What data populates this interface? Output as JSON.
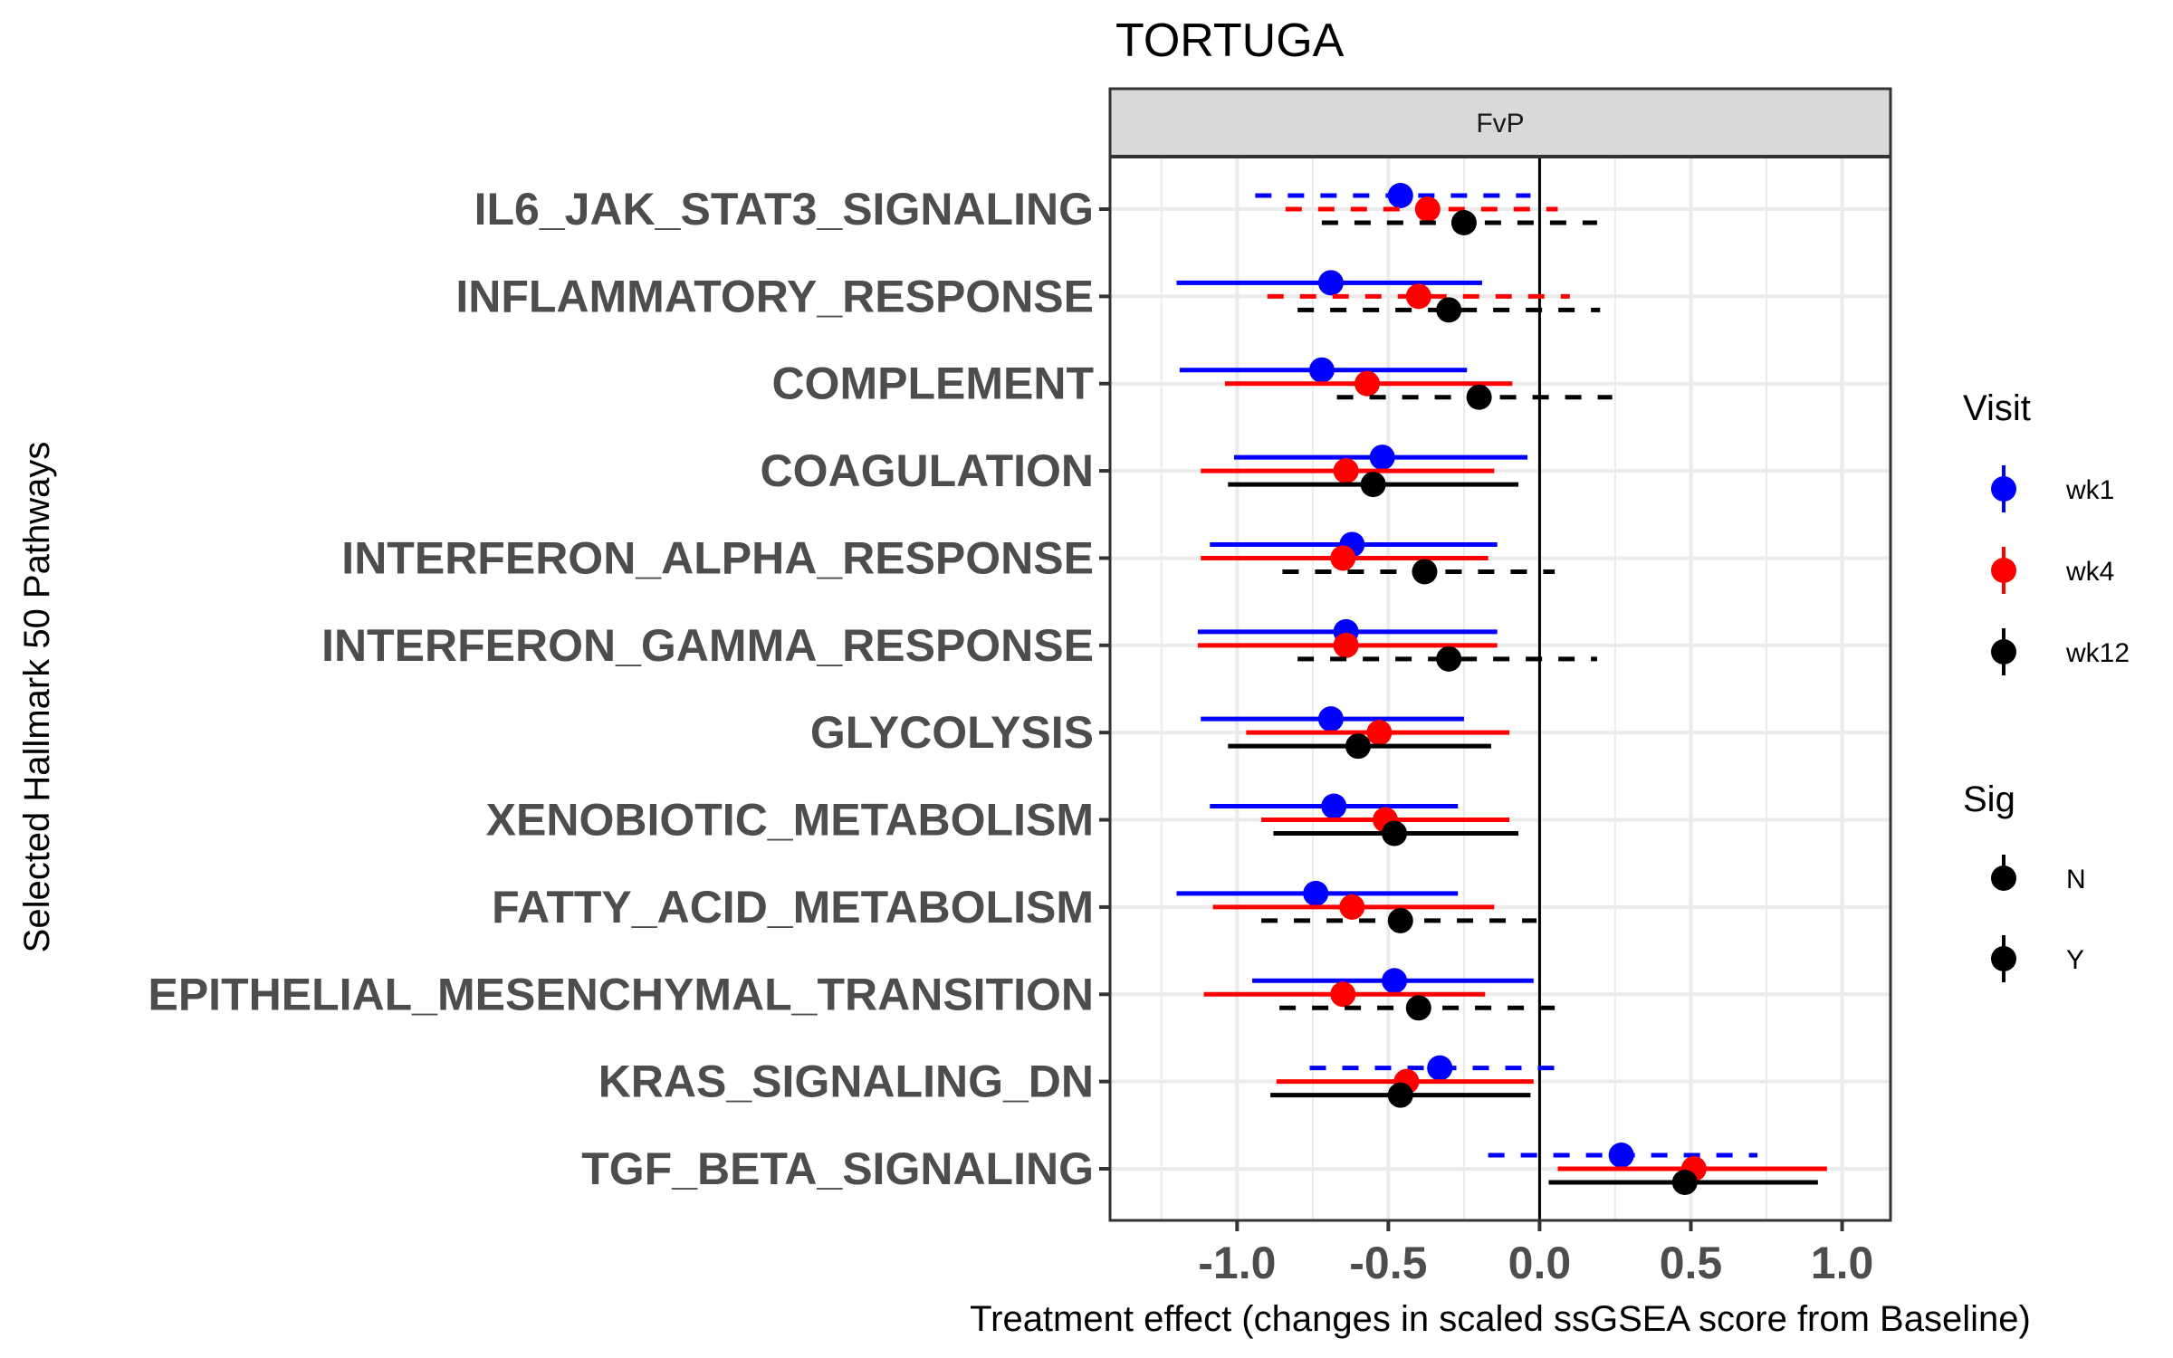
{
  "chart_data": {
    "type": "forest",
    "title": "TORTUGA",
    "facet_label": "FvP",
    "xlabel": "Treatment effect (changes in scaled ssGSEA score from Baseline)",
    "ylabel": "Selected Hallmark 50 Pathways",
    "xlim": [
      -1.42,
      1.16
    ],
    "x_ticks": [
      -1.0,
      -0.5,
      0.0,
      0.5,
      1.0
    ],
    "x_tick_labels": [
      "-1.0",
      "-0.5",
      "0.0",
      "0.5",
      "1.0"
    ],
    "x_minor_gridlines": [
      -1.25,
      -0.75,
      -0.25,
      0.25,
      0.75
    ],
    "reference_line": 0.0,
    "grid": true,
    "legend_position": "right",
    "colors": {
      "wk1": "#0000FF",
      "wk4": "#FF0000",
      "wk12": "#000000"
    },
    "legends": [
      {
        "title": "Visit",
        "entries": [
          {
            "label": "wk1",
            "color": "#0000FF",
            "linetype": "solid"
          },
          {
            "label": "wk4",
            "color": "#FF0000",
            "linetype": "solid"
          },
          {
            "label": "wk12",
            "color": "#000000",
            "linetype": "solid"
          }
        ]
      },
      {
        "title": "Sig",
        "entries": [
          {
            "label": "N",
            "color": "#000000",
            "linetype": "dashed"
          },
          {
            "label": "Y",
            "color": "#000000",
            "linetype": "solid"
          }
        ]
      }
    ],
    "visits": [
      "wk1",
      "wk4",
      "wk12"
    ],
    "pathways": [
      {
        "name": "IL6_JAK_STAT3_SIGNALING",
        "estimates": [
          {
            "visit": "wk1",
            "estimate": -0.46,
            "lower": -0.94,
            "upper": -0.03,
            "sig": "N"
          },
          {
            "visit": "wk4",
            "estimate": -0.37,
            "lower": -0.84,
            "upper": 0.06,
            "sig": "N"
          },
          {
            "visit": "wk12",
            "estimate": -0.25,
            "lower": -0.72,
            "upper": 0.19,
            "sig": "N"
          }
        ]
      },
      {
        "name": "INFLAMMATORY_RESPONSE",
        "estimates": [
          {
            "visit": "wk1",
            "estimate": -0.69,
            "lower": -1.2,
            "upper": -0.19,
            "sig": "Y"
          },
          {
            "visit": "wk4",
            "estimate": -0.4,
            "lower": -0.9,
            "upper": 0.1,
            "sig": "N"
          },
          {
            "visit": "wk12",
            "estimate": -0.3,
            "lower": -0.8,
            "upper": 0.2,
            "sig": "N"
          }
        ]
      },
      {
        "name": "COMPLEMENT",
        "estimates": [
          {
            "visit": "wk1",
            "estimate": -0.72,
            "lower": -1.19,
            "upper": -0.24,
            "sig": "Y"
          },
          {
            "visit": "wk4",
            "estimate": -0.57,
            "lower": -1.04,
            "upper": -0.09,
            "sig": "Y"
          },
          {
            "visit": "wk12",
            "estimate": -0.2,
            "lower": -0.67,
            "upper": 0.24,
            "sig": "N"
          }
        ]
      },
      {
        "name": "COAGULATION",
        "estimates": [
          {
            "visit": "wk1",
            "estimate": -0.52,
            "lower": -1.01,
            "upper": -0.04,
            "sig": "Y"
          },
          {
            "visit": "wk4",
            "estimate": -0.64,
            "lower": -1.12,
            "upper": -0.15,
            "sig": "Y"
          },
          {
            "visit": "wk12",
            "estimate": -0.55,
            "lower": -1.03,
            "upper": -0.07,
            "sig": "Y"
          }
        ]
      },
      {
        "name": "INTERFERON_ALPHA_RESPONSE",
        "estimates": [
          {
            "visit": "wk1",
            "estimate": -0.62,
            "lower": -1.09,
            "upper": -0.14,
            "sig": "Y"
          },
          {
            "visit": "wk4",
            "estimate": -0.65,
            "lower": -1.12,
            "upper": -0.17,
            "sig": "Y"
          },
          {
            "visit": "wk12",
            "estimate": -0.38,
            "lower": -0.85,
            "upper": 0.05,
            "sig": "N"
          }
        ]
      },
      {
        "name": "INTERFERON_GAMMA_RESPONSE",
        "estimates": [
          {
            "visit": "wk1",
            "estimate": -0.64,
            "lower": -1.13,
            "upper": -0.14,
            "sig": "Y"
          },
          {
            "visit": "wk4",
            "estimate": -0.64,
            "lower": -1.13,
            "upper": -0.14,
            "sig": "Y"
          },
          {
            "visit": "wk12",
            "estimate": -0.3,
            "lower": -0.8,
            "upper": 0.19,
            "sig": "N"
          }
        ]
      },
      {
        "name": "GLYCOLYSIS",
        "estimates": [
          {
            "visit": "wk1",
            "estimate": -0.69,
            "lower": -1.12,
            "upper": -0.25,
            "sig": "Y"
          },
          {
            "visit": "wk4",
            "estimate": -0.53,
            "lower": -0.97,
            "upper": -0.1,
            "sig": "Y"
          },
          {
            "visit": "wk12",
            "estimate": -0.6,
            "lower": -1.03,
            "upper": -0.16,
            "sig": "Y"
          }
        ]
      },
      {
        "name": "XENOBIOTIC_METABOLISM",
        "estimates": [
          {
            "visit": "wk1",
            "estimate": -0.68,
            "lower": -1.09,
            "upper": -0.27,
            "sig": "Y"
          },
          {
            "visit": "wk4",
            "estimate": -0.51,
            "lower": -0.92,
            "upper": -0.1,
            "sig": "Y"
          },
          {
            "visit": "wk12",
            "estimate": -0.48,
            "lower": -0.88,
            "upper": -0.07,
            "sig": "Y"
          }
        ]
      },
      {
        "name": "FATTY_ACID_METABOLISM",
        "estimates": [
          {
            "visit": "wk1",
            "estimate": -0.74,
            "lower": -1.2,
            "upper": -0.27,
            "sig": "Y"
          },
          {
            "visit": "wk4",
            "estimate": -0.62,
            "lower": -1.08,
            "upper": -0.15,
            "sig": "Y"
          },
          {
            "visit": "wk12",
            "estimate": -0.46,
            "lower": -0.92,
            "upper": -0.01,
            "sig": "N"
          }
        ]
      },
      {
        "name": "EPITHELIAL_MESENCHYMAL_TRANSITION",
        "estimates": [
          {
            "visit": "wk1",
            "estimate": -0.48,
            "lower": -0.95,
            "upper": -0.02,
            "sig": "Y"
          },
          {
            "visit": "wk4",
            "estimate": -0.65,
            "lower": -1.11,
            "upper": -0.18,
            "sig": "Y"
          },
          {
            "visit": "wk12",
            "estimate": -0.4,
            "lower": -0.86,
            "upper": 0.05,
            "sig": "N"
          }
        ]
      },
      {
        "name": "KRAS_SIGNALING_DN",
        "estimates": [
          {
            "visit": "wk1",
            "estimate": -0.33,
            "lower": -0.76,
            "upper": 0.1,
            "sig": "N"
          },
          {
            "visit": "wk4",
            "estimate": -0.44,
            "lower": -0.87,
            "upper": -0.02,
            "sig": "Y"
          },
          {
            "visit": "wk12",
            "estimate": -0.46,
            "lower": -0.89,
            "upper": -0.03,
            "sig": "Y"
          }
        ]
      },
      {
        "name": "TGF_BETA_SIGNALING",
        "estimates": [
          {
            "visit": "wk1",
            "estimate": 0.27,
            "lower": -0.17,
            "upper": 0.72,
            "sig": "N"
          },
          {
            "visit": "wk4",
            "estimate": 0.51,
            "lower": 0.06,
            "upper": 0.95,
            "sig": "Y"
          },
          {
            "visit": "wk12",
            "estimate": 0.48,
            "lower": 0.03,
            "upper": 0.92,
            "sig": "Y"
          }
        ]
      }
    ]
  }
}
